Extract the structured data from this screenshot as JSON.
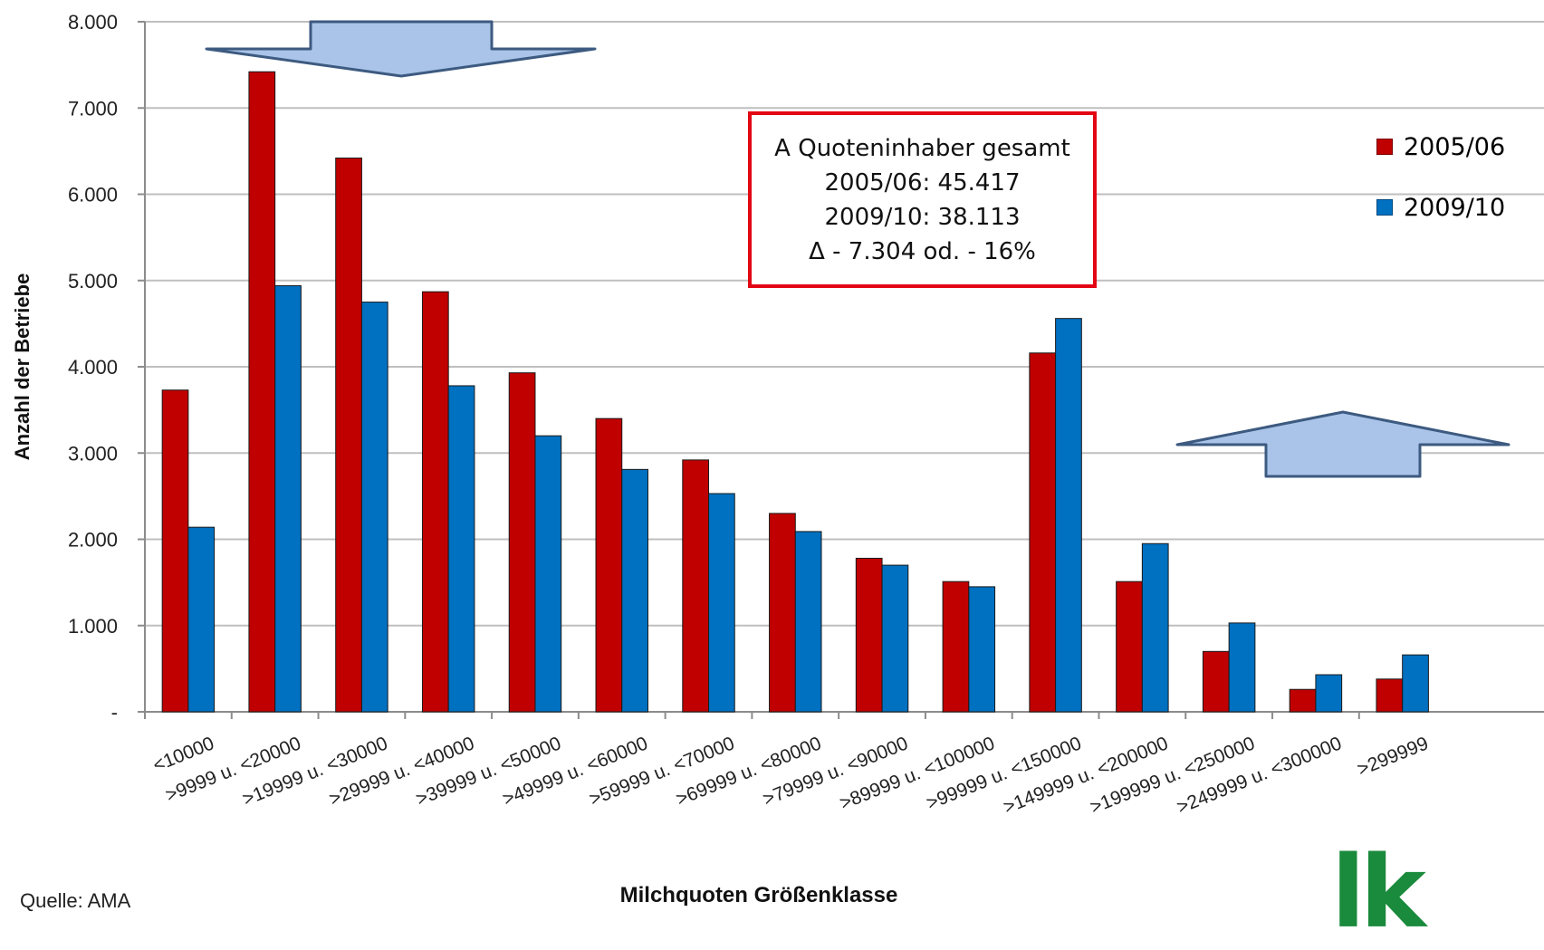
{
  "chart_data": {
    "type": "bar",
    "categories": [
      "<10000",
      ">9999  u. <20000",
      ">19999 u. <30000",
      ">29999 u. <40000",
      ">39999 u. <50000",
      ">49999 u. <60000",
      ">59999 u. <70000",
      ">69999 u. <80000",
      ">79999 u. <90000",
      ">89999 u. <100000",
      ">99999 u. <150000",
      ">149999 u. <200000",
      ">199999 u. <250000",
      ">249999 u. <300000",
      ">299999"
    ],
    "series": [
      {
        "name": "2005/06",
        "color": "#c00000",
        "values": [
          3730,
          7420,
          6420,
          4870,
          3930,
          3400,
          2920,
          2300,
          1780,
          1510,
          4160,
          1510,
          700,
          260,
          380
        ]
      },
      {
        "name": "2009/10",
        "color": "#0070c0",
        "values": [
          2140,
          4940,
          4750,
          3780,
          3200,
          2810,
          2530,
          2090,
          1700,
          1450,
          4560,
          1950,
          1030,
          430,
          660
        ]
      }
    ],
    "xlabel": "Milchquoten Größenklasse",
    "ylabel": "Anzahl der Betriebe",
    "ylim": [
      0,
      8000
    ],
    "yticks": [
      0,
      1000,
      2000,
      3000,
      4000,
      5000,
      6000,
      7000,
      8000
    ],
    "ytick_labels": [
      "-",
      "1.000",
      "2.000",
      "3.000",
      "4.000",
      "5.000",
      "6.000",
      "7.000",
      "8.000"
    ],
    "grid": true,
    "legend_position": "top-right",
    "annotation": {
      "lines": [
        "A Quoteninhaber  gesamt",
        "2005/06: 45.417",
        "2009/10: 38.113",
        "Δ - 7.304 od. - 16%"
      ],
      "border_color": "#e30613"
    },
    "arrows": [
      {
        "direction": "down",
        "name": "decrease-arrow",
        "color": "#a9c4e8"
      },
      {
        "direction": "up",
        "name": "increase-arrow",
        "color": "#a9c4e8"
      }
    ]
  },
  "footer": {
    "source": "Quelle: AMA",
    "logo_text": "lk"
  }
}
